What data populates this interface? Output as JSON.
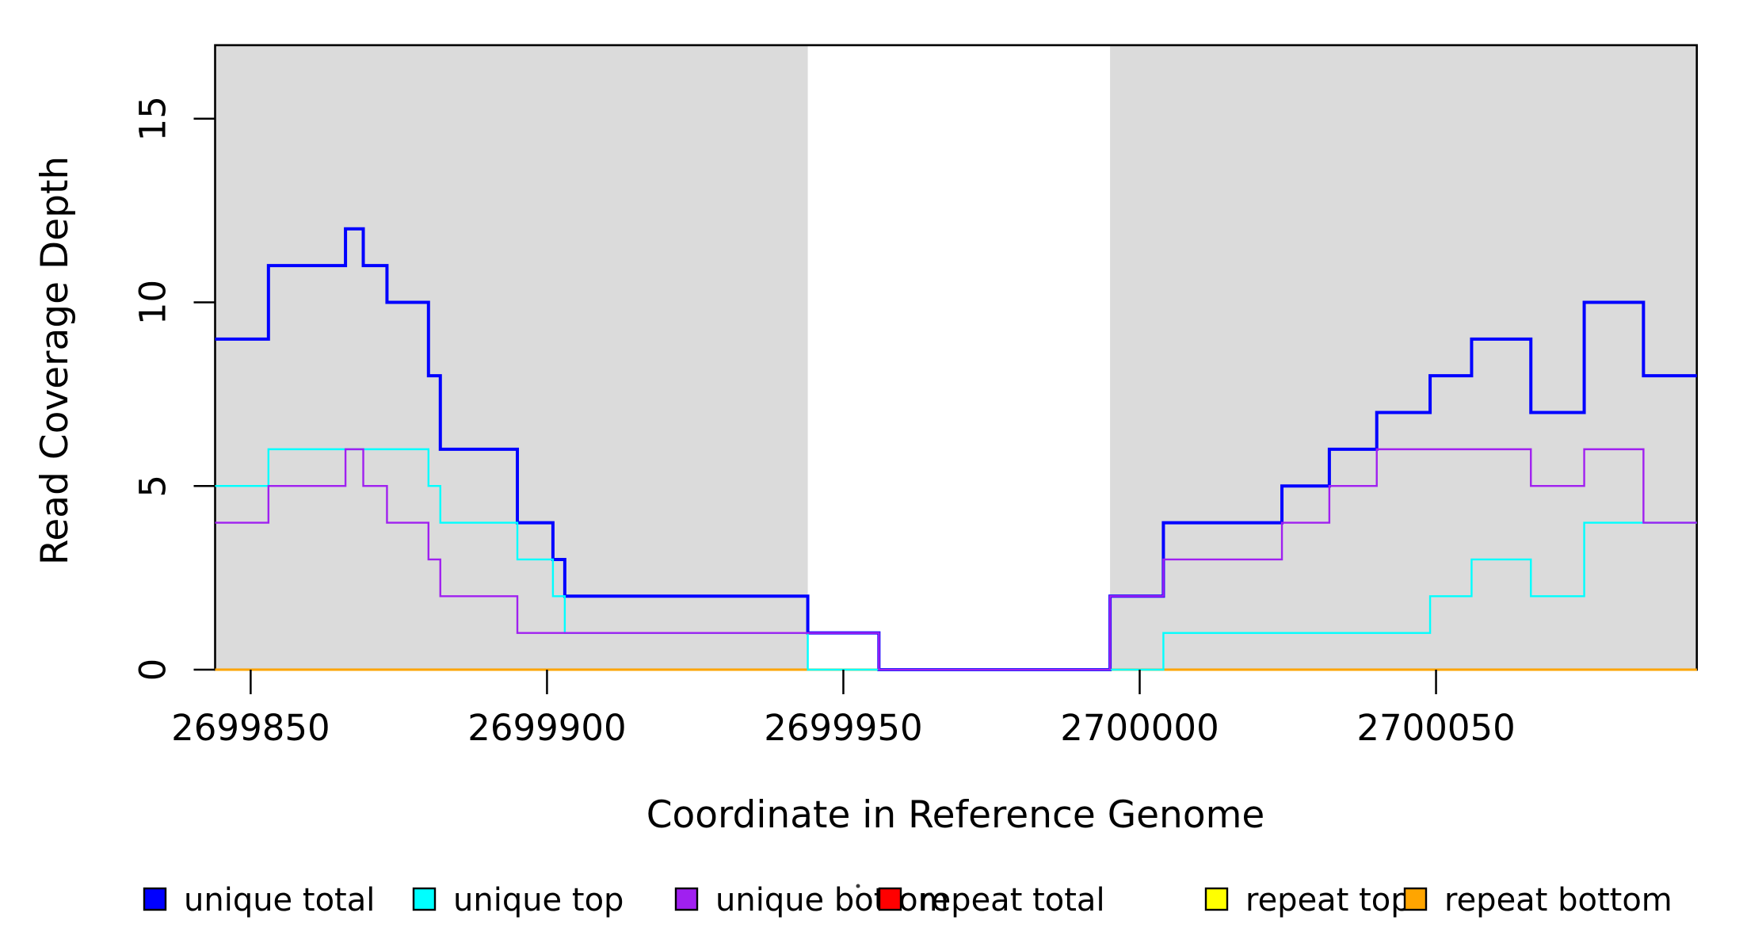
{
  "figure": {
    "background": "#FFFFFF",
    "shaded_region_color": "#DBDBDB",
    "axis_color": "#000000"
  },
  "axes": {
    "x_label": "Coordinate in Reference Genome",
    "y_label": "Read Coverage Depth",
    "x_ticks": [
      "2699850",
      "2699900",
      "2699950",
      "2700000",
      "2700050"
    ],
    "x_tick_values": [
      2699850,
      2699900,
      2699950,
      2700000,
      2700050
    ],
    "y_ticks": [
      "0",
      "5",
      "10",
      "15"
    ],
    "y_tick_values": [
      0,
      5,
      10,
      15
    ],
    "xlim": [
      2699844,
      2700094
    ],
    "ylim": [
      0,
      17
    ]
  },
  "chart_data": {
    "type": "line",
    "subtype": "step-function-coverage-plot",
    "title": "",
    "xlabel": "Coordinate in Reference Genome",
    "ylabel": "Read Coverage Depth",
    "xlim": [
      2699844,
      2700094
    ],
    "ylim": [
      0,
      17
    ],
    "x_ticks": [
      2699850,
      2699900,
      2699950,
      2700000,
      2700050
    ],
    "y_ticks": [
      0,
      5,
      10,
      15
    ],
    "grid": false,
    "legend_position": "bottom-horizontal",
    "shaded_regions": [
      {
        "start": 2699844,
        "end": 2699944,
        "color": "#DBDBDB"
      },
      {
        "start": 2699995,
        "end": 2700094,
        "color": "#DBDBDB"
      }
    ],
    "series": [
      {
        "name": "repeat total",
        "color": "#FF0000",
        "steps": [
          [
            2699844,
            0
          ],
          [
            2700094,
            0
          ]
        ]
      },
      {
        "name": "repeat top",
        "color": "#FFFF00",
        "steps": [
          [
            2699844,
            0
          ],
          [
            2700094,
            0
          ]
        ]
      },
      {
        "name": "repeat bottom",
        "color": "#FFA500",
        "steps": [
          [
            2699844,
            0
          ],
          [
            2700094,
            0
          ]
        ]
      },
      {
        "name": "unique total",
        "color": "#0000FF",
        "steps": [
          [
            2699844,
            9
          ],
          [
            2699853,
            11
          ],
          [
            2699866,
            12
          ],
          [
            2699869,
            11
          ],
          [
            2699873,
            10
          ],
          [
            2699880,
            8
          ],
          [
            2699882,
            6
          ],
          [
            2699895,
            4
          ],
          [
            2699901,
            3
          ],
          [
            2699903,
            2
          ],
          [
            2699944,
            1
          ],
          [
            2699956,
            0
          ],
          [
            2699995,
            2
          ],
          [
            2700004,
            4
          ],
          [
            2700024,
            5
          ],
          [
            2700032,
            6
          ],
          [
            2700040,
            7
          ],
          [
            2700049,
            8
          ],
          [
            2700056,
            9
          ],
          [
            2700066,
            7
          ],
          [
            2700075,
            10
          ],
          [
            2700085,
            8
          ],
          [
            2700094,
            8
          ]
        ]
      },
      {
        "name": "unique top",
        "color": "#00FFFF",
        "steps": [
          [
            2699844,
            5
          ],
          [
            2699853,
            6
          ],
          [
            2699880,
            5
          ],
          [
            2699882,
            4
          ],
          [
            2699895,
            3
          ],
          [
            2699901,
            2
          ],
          [
            2699903,
            1
          ],
          [
            2699944,
            0
          ],
          [
            2700004,
            1
          ],
          [
            2700049,
            2
          ],
          [
            2700056,
            3
          ],
          [
            2700066,
            2
          ],
          [
            2700075,
            4
          ],
          [
            2700094,
            4
          ]
        ]
      },
      {
        "name": "unique bottom",
        "color": "#A020F0",
        "steps": [
          [
            2699844,
            4
          ],
          [
            2699853,
            5
          ],
          [
            2699866,
            6
          ],
          [
            2699869,
            5
          ],
          [
            2699873,
            4
          ],
          [
            2699880,
            3
          ],
          [
            2699882,
            2
          ],
          [
            2699895,
            1
          ],
          [
            2699956,
            0
          ],
          [
            2699995,
            2
          ],
          [
            2700004,
            3
          ],
          [
            2700024,
            4
          ],
          [
            2700032,
            5
          ],
          [
            2700040,
            6
          ],
          [
            2700066,
            5
          ],
          [
            2700075,
            6
          ],
          [
            2700085,
            4
          ],
          [
            2700094,
            4
          ]
        ]
      }
    ]
  },
  "legend": {
    "items": [
      {
        "label": "unique total",
        "color": "#0000FF"
      },
      {
        "label": "unique top",
        "color": "#00FFFF"
      },
      {
        "label": "unique bottom",
        "color": "#A020F0"
      },
      {
        "label": "repeat total",
        "color": "#FF0000"
      },
      {
        "label": "repeat top",
        "color": "#FFFF00"
      },
      {
        "label": "repeat bottom",
        "color": "#FFA500"
      }
    ]
  }
}
